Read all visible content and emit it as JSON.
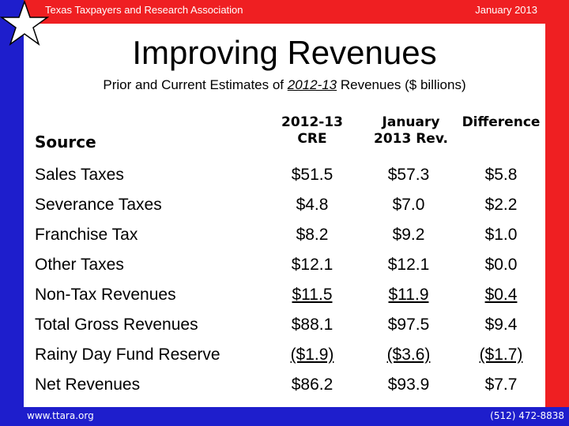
{
  "header": {
    "organization": "Texas Taxpayers and Research Association",
    "date": "January 2013"
  },
  "footer": {
    "website": "www.ttara.org",
    "phone": "(512) 472-8838"
  },
  "title": "Improving Revenues",
  "subtitle": {
    "before": "Prior and Current Estimates of ",
    "emphasis": "2012-13",
    "after": " Revenues ($ billions)"
  },
  "table": {
    "headers": {
      "source": "Source",
      "col1_line1": "2012-13",
      "col1_line2": "CRE",
      "col2_line1": "January",
      "col2_line2": "2013 Rev.",
      "col3": "Difference"
    },
    "rows": [
      {
        "source": "Sales Taxes",
        "cre": "$51.5",
        "rev": "$57.3",
        "diff": "$5.8"
      },
      {
        "source": "Severance Taxes",
        "cre": "$4.8",
        "rev": "$7.0",
        "diff": "$2.2"
      },
      {
        "source": "Franchise Tax",
        "cre": "$8.2",
        "rev": "$9.2",
        "diff": "$1.0"
      },
      {
        "source": "Other Taxes",
        "cre": "$12.1",
        "rev": "$12.1",
        "diff": "$0.0"
      },
      {
        "source": "Non-Tax Revenues",
        "cre": "$11.5",
        "rev": "$11.9",
        "diff": "$0.4"
      },
      {
        "source": "Total Gross Revenues",
        "cre": "$88.1",
        "rev": "$97.5",
        "diff": "$9.4"
      },
      {
        "source": "Rainy Day Fund Reserve",
        "cre": "($1.9)",
        "rev": "($3.6)",
        "diff": "($1.7)"
      },
      {
        "source": "Net Revenues",
        "cre": "$86.2",
        "rev": "$93.9",
        "diff": "$7.7"
      }
    ]
  },
  "colors": {
    "flag_blue": "#1e1ecc",
    "flag_red": "#ef1f22",
    "background": "#ffffff"
  },
  "icons": {
    "star": "star-icon"
  }
}
